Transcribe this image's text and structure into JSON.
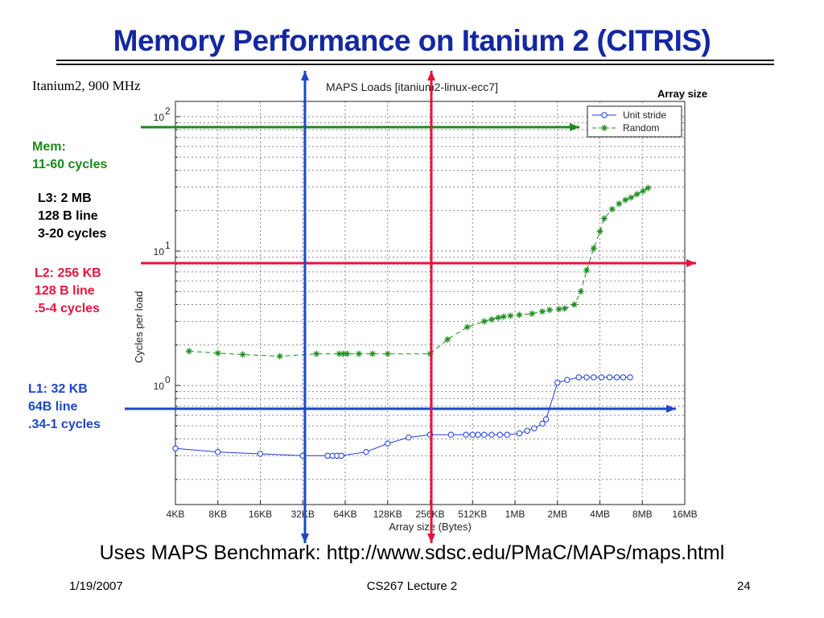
{
  "slide": {
    "title": "Memory Performance on Itanium 2 (CITRIS)",
    "cpu_label": "Itanium2, 900 MHz",
    "array_size_label": "Array size",
    "caption": "Uses MAPS Benchmark: http://www.sdsc.edu/PMaC/MAPs/maps.html",
    "footer": {
      "date": "1/19/2007",
      "course": "CS267 Lecture 2",
      "page": "24"
    }
  },
  "annotations": {
    "mem": {
      "lines": [
        "Mem:",
        "11-60 cycles"
      ],
      "color": "#1a8a1a"
    },
    "l3": {
      "lines": [
        "L3: 2 MB",
        "128 B line",
        "3-20 cycles"
      ],
      "color": "#000000"
    },
    "l2": {
      "lines": [
        "L2: 256 KB",
        "128 B line",
        ".5-4 cycles"
      ],
      "color": "#e8143c"
    },
    "l1": {
      "lines": [
        "L1: 32 KB",
        "64B line",
        ".34-1 cycles"
      ],
      "color": "#1e46c8"
    }
  },
  "chart_data": {
    "type": "line",
    "title": "MAPS Loads [itanium2-linux-ecc7]",
    "xlabel": "Array size (Bytes)",
    "ylabel": "Cycles per load",
    "x_scale": "log2",
    "y_scale": "log10",
    "x_tick_labels": [
      "4KB",
      "8KB",
      "16KB",
      "32KB",
      "64KB",
      "128KB",
      "256KB",
      "512KB",
      "1MB",
      "2MB",
      "4MB",
      "8MB",
      "16MB"
    ],
    "x_tick_kb": [
      4,
      8,
      16,
      32,
      64,
      128,
      256,
      512,
      1024,
      2048,
      4096,
      8192,
      16384
    ],
    "y_tick_labels": [
      "10",
      "10",
      "10"
    ],
    "y_tick_exponents": [
      "2",
      "1",
      "0"
    ],
    "y_tick_values": [
      100,
      10,
      1
    ],
    "xlim_kb": [
      4,
      16384
    ],
    "ylim": [
      0.13,
      130
    ],
    "grid": true,
    "legend_position": "top-right",
    "series": [
      {
        "name": "Unit stride",
        "color": "#1e3cdc",
        "marker": "circle",
        "line": "solid",
        "points": [
          [
            4,
            0.34
          ],
          [
            8,
            0.32
          ],
          [
            16,
            0.31
          ],
          [
            32,
            0.3
          ],
          [
            48,
            0.3
          ],
          [
            52,
            0.3
          ],
          [
            56,
            0.3
          ],
          [
            60,
            0.3
          ],
          [
            90,
            0.32
          ],
          [
            128,
            0.37
          ],
          [
            180,
            0.41
          ],
          [
            256,
            0.43
          ],
          [
            360,
            0.43
          ],
          [
            460,
            0.43
          ],
          [
            512,
            0.43
          ],
          [
            560,
            0.43
          ],
          [
            620,
            0.43
          ],
          [
            700,
            0.43
          ],
          [
            800,
            0.43
          ],
          [
            900,
            0.43
          ],
          [
            1100,
            0.44
          ],
          [
            1250,
            0.46
          ],
          [
            1400,
            0.48
          ],
          [
            1600,
            0.52
          ],
          [
            1700,
            0.56
          ],
          [
            2048,
            1.05
          ],
          [
            2400,
            1.1
          ],
          [
            2900,
            1.15
          ],
          [
            3300,
            1.15
          ],
          [
            3700,
            1.15
          ],
          [
            4200,
            1.15
          ],
          [
            4800,
            1.15
          ],
          [
            5400,
            1.15
          ],
          [
            6000,
            1.15
          ],
          [
            6700,
            1.15
          ]
        ]
      },
      {
        "name": "Random",
        "color": "#1e8c1e",
        "marker": "star",
        "line": "dashed",
        "points": [
          [
            5,
            1.8
          ],
          [
            8,
            1.74
          ],
          [
            12,
            1.7
          ],
          [
            22,
            1.65
          ],
          [
            40,
            1.72
          ],
          [
            58,
            1.72
          ],
          [
            62,
            1.72
          ],
          [
            66,
            1.72
          ],
          [
            80,
            1.72
          ],
          [
            100,
            1.72
          ],
          [
            128,
            1.72
          ],
          [
            256,
            1.72
          ],
          [
            340,
            2.2
          ],
          [
            470,
            2.72
          ],
          [
            620,
            3.0
          ],
          [
            700,
            3.1
          ],
          [
            780,
            3.2
          ],
          [
            850,
            3.25
          ],
          [
            950,
            3.3
          ],
          [
            1100,
            3.35
          ],
          [
            1350,
            3.42
          ],
          [
            1600,
            3.55
          ],
          [
            1800,
            3.65
          ],
          [
            2100,
            3.7
          ],
          [
            2300,
            3.74
          ],
          [
            2700,
            4.0
          ],
          [
            3000,
            5.0
          ],
          [
            3300,
            7.2
          ],
          [
            3700,
            10.5
          ],
          [
            4100,
            14.0
          ],
          [
            4400,
            17.5
          ],
          [
            5000,
            20.5
          ],
          [
            5600,
            22.5
          ],
          [
            6200,
            24.0
          ],
          [
            6800,
            25.0
          ],
          [
            7500,
            26.5
          ],
          [
            8300,
            28.0
          ],
          [
            9000,
            29.5
          ]
        ]
      }
    ]
  }
}
